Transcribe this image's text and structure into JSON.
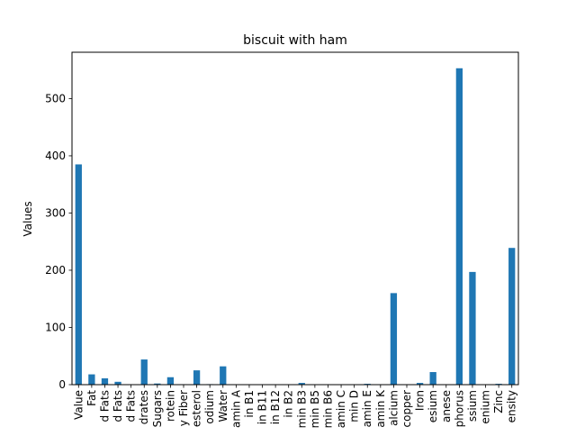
{
  "chart_data": {
    "type": "bar",
    "title": "biscuit with ham",
    "xlabel": "",
    "ylabel": "Values",
    "ylim": [
      0,
      581
    ],
    "yticks": [
      0,
      100,
      200,
      300,
      400,
      500
    ],
    "grid": false,
    "legend": "none",
    "bar_color": "#1f77b4",
    "categories": [
      "Value",
      "Fat",
      "d Fats",
      "d Fats",
      "d Fats",
      "drates",
      "Sugars",
      "rotein",
      "y Fiber",
      "esterol",
      "odium",
      "Water",
      "amin A",
      "in B1",
      "in B11",
      "in B12",
      "in B2",
      "min B3",
      "min B5",
      "min B6",
      "amin C",
      "min D",
      "amin E",
      "amin K",
      "alcium",
      "copper",
      "Iron",
      "esium",
      "anese",
      "phorus",
      "ssium",
      "enium",
      "Zinc",
      "ensity"
    ],
    "values": [
      385,
      18,
      11,
      5,
      0.5,
      44,
      2,
      13,
      0.8,
      25,
      0.9,
      32,
      0.3,
      0.3,
      0.1,
      0.1,
      0.2,
      3,
      0.4,
      0.1,
      0.1,
      0.1,
      1.5,
      0.3,
      160,
      0.1,
      3,
      22,
      0.3,
      553,
      197,
      0.1,
      1.5,
      239
    ]
  }
}
